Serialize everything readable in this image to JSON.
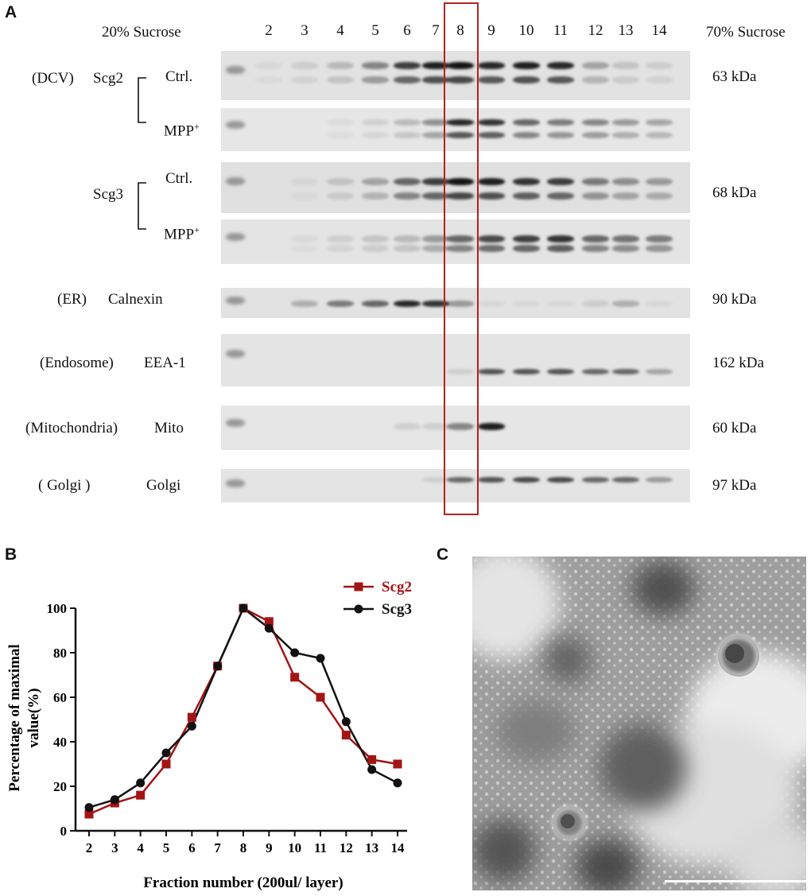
{
  "panel_a": {
    "letter": "A",
    "left_header": "20% Sucrose",
    "right_header": "70% Sucrose",
    "lanes": [
      "2",
      "3",
      "4",
      "5",
      "6",
      "7",
      "8",
      "9",
      "10",
      "11",
      "12",
      "13",
      "14"
    ],
    "highlighted_lane": "8",
    "rows": {
      "dcv": {
        "organelle": "(DCV)",
        "protein": "Scg2",
        "ctrl": "Ctrl.",
        "mpp": "MPP",
        "mpp_sup": "+",
        "kda": "63 kDa"
      },
      "scg3": {
        "protein": "Scg3",
        "ctrl": "Ctrl.",
        "mpp": "MPP",
        "mpp_sup": "+",
        "kda": "68 kDa"
      },
      "er": {
        "organelle": "(ER)",
        "protein": "Calnexin",
        "kda": "90 kDa"
      },
      "endosome": {
        "organelle": "(Endosome)",
        "protein": "EEA-1",
        "kda": "162 kDa"
      },
      "mito": {
        "organelle": "(Mitochondria)",
        "protein": "Mito",
        "kda": "60 kDa"
      },
      "golgi": {
        "organelle": "( Golgi )",
        "protein": "Golgi",
        "kda": "97 kDa"
      }
    },
    "band_intensity": {
      "scg2_ctrl": [
        0.05,
        0.1,
        0.2,
        0.45,
        0.8,
        0.95,
        1.0,
        0.9,
        0.95,
        0.9,
        0.3,
        0.15,
        0.1
      ],
      "scg2_mpp": [
        0.0,
        0.0,
        0.05,
        0.1,
        0.2,
        0.4,
        0.9,
        0.85,
        0.6,
        0.5,
        0.45,
        0.35,
        0.3
      ],
      "scg3_ctrl": [
        0.0,
        0.05,
        0.15,
        0.3,
        0.6,
        0.8,
        1.0,
        0.95,
        0.85,
        0.8,
        0.5,
        0.4,
        0.35
      ],
      "scg3_mpp": [
        0.0,
        0.05,
        0.1,
        0.15,
        0.2,
        0.35,
        0.6,
        0.75,
        0.8,
        0.85,
        0.6,
        0.55,
        0.5
      ],
      "calnexin": [
        0.0,
        0.25,
        0.5,
        0.6,
        0.9,
        0.85,
        0.35,
        0.05,
        0.05,
        0.05,
        0.1,
        0.25,
        0.05
      ],
      "eea1": [
        0.0,
        0.0,
        0.0,
        0.0,
        0.0,
        0.0,
        0.1,
        0.7,
        0.7,
        0.7,
        0.6,
        0.6,
        0.3
      ],
      "mito": [
        0.0,
        0.0,
        0.0,
        0.0,
        0.1,
        0.1,
        0.45,
        0.95,
        0.0,
        0.0,
        0.0,
        0.0,
        0.0
      ],
      "golgi": [
        0.0,
        0.0,
        0.0,
        0.0,
        0.0,
        0.1,
        0.6,
        0.7,
        0.75,
        0.75,
        0.6,
        0.6,
        0.35
      ]
    }
  },
  "panel_b": {
    "letter": "B"
  },
  "chart_data": {
    "type": "line",
    "x": [
      2,
      3,
      4,
      5,
      6,
      7,
      8,
      9,
      10,
      11,
      12,
      13,
      14
    ],
    "xticks": [
      "2",
      "3",
      "4",
      "5",
      "6",
      "7",
      "8",
      "9",
      "10",
      "11",
      "12",
      "13",
      "14"
    ],
    "yticks": [
      "0",
      "20",
      "40",
      "60",
      "80",
      "100"
    ],
    "ylim": [
      0,
      100
    ],
    "xlabel": "Fraction number (200ul/ layer)",
    "ylabel_line1": "Percentage of maximal",
    "ylabel_line2": "value(%)",
    "series": [
      {
        "name": "Scg2",
        "color": "#a31515",
        "marker": "square",
        "values": [
          7.5,
          12.5,
          16,
          30,
          51,
          74,
          100,
          94,
          69,
          60,
          43,
          32,
          30
        ]
      },
      {
        "name": "Scg3",
        "color": "#111111",
        "marker": "circle",
        "values": [
          10.5,
          14,
          21.5,
          35,
          47,
          74,
          100,
          91,
          80,
          77.5,
          49,
          27.5,
          21.5
        ]
      }
    ]
  },
  "panel_c": {
    "letter": "C"
  },
  "colors": {
    "highlight_box": "#b22222",
    "scg2": "#a31515",
    "scg3": "#111111"
  }
}
